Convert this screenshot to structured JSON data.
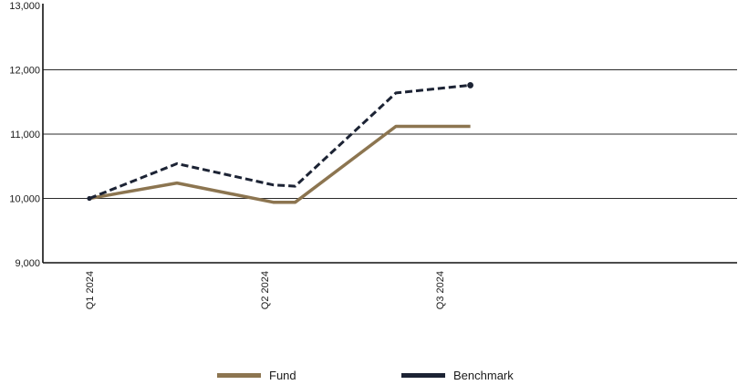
{
  "chart_data": {
    "type": "line",
    "title": "",
    "xlabel": "",
    "ylabel": "",
    "x": [
      "Q1 2024",
      "",
      "Q2 2024",
      "",
      "Q3 2024",
      ""
    ],
    "x_tick_labels": [
      "Q1 2024",
      "Q2 2024",
      "Q3 2024"
    ],
    "y_ticks": [
      "9,000",
      "10,000",
      "11,000",
      "12,000",
      "13,000"
    ],
    "y_tick_values": [
      9000,
      10000,
      11000,
      12000,
      13000
    ],
    "ylim": [
      9000,
      13000
    ],
    "grid": "horizontal",
    "legend_position": "bottom",
    "series": [
      {
        "name": "Fund",
        "color": "#8c7550",
        "style": "solid",
        "x_index": [
          0,
          1,
          2.1,
          2.35,
          3.5,
          4.35
        ],
        "values": [
          10000,
          10240,
          9940,
          9940,
          11120,
          11120
        ]
      },
      {
        "name": "Benchmark",
        "color": "#1c2334",
        "style": "dashed",
        "x_index": [
          0,
          1,
          2.1,
          2.35,
          3.5,
          4.35
        ],
        "values": [
          10000,
          10540,
          10210,
          10190,
          11640,
          11760
        ]
      }
    ]
  }
}
